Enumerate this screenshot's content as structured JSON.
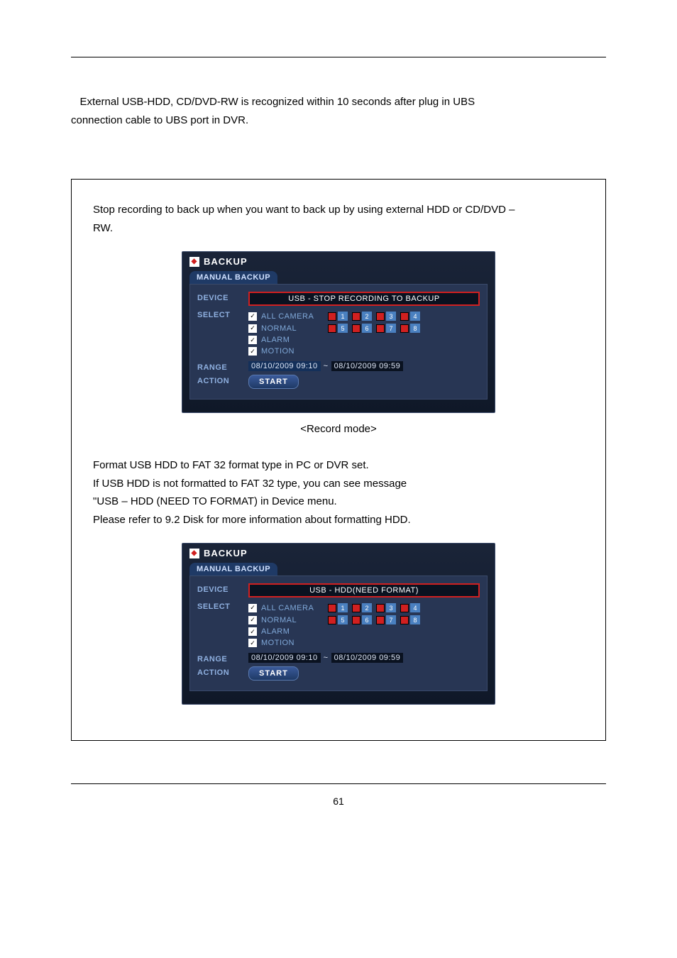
{
  "intro": {
    "line1": "External USB-HDD, CD/DVD-RW is recognized within 10 seconds after plug in UBS",
    "line2": "connection cable to UBS port in DVR."
  },
  "box": {
    "lead1": "Stop recording to back up when you want to back up by using external HDD or CD/DVD –",
    "lead2": "RW.",
    "caption1": "<Record mode>",
    "mid1": "Format USB HDD to FAT 32 format type in PC or DVR set.",
    "mid2": "If USB HDD is not formatted to FAT 32 type, you can see message",
    "mid3": "\"USB – HDD (NEED TO FORMAT) in Device menu.",
    "mid4": "Please refer to 9.2 Disk for more information about formatting HDD."
  },
  "dialog": {
    "title": "BACKUP",
    "tab": "MANUAL BACKUP",
    "labels": {
      "device": "DEVICE",
      "select": "SELECT",
      "range": "RANGE",
      "action": "ACTION"
    },
    "device1": "USB - STOP RECORDING TO BACKUP",
    "device2": "USB - HDD(NEED FORMAT)",
    "checks": {
      "allcam": "ALL CAMERA",
      "normal": "NORMAL",
      "alarm": "ALARM",
      "motion": "MOTION"
    },
    "cams_row1": [
      "1",
      "2",
      "3",
      "4"
    ],
    "cams_row2": [
      "5",
      "6",
      "7",
      "8"
    ],
    "cam_colors_row1": [
      "#4a80c0",
      "#4a80c0",
      "#4a80c0",
      "#4a80c0"
    ],
    "cam_colors_row2": [
      "#4a80c0",
      "#4a80c0",
      "#4a80c0",
      "#4a80c0"
    ],
    "range_from": "08/10/2009 09:10",
    "range_sep": "~",
    "range_to": "08/10/2009 09:59",
    "start": "START"
  },
  "colors": {
    "red": "#d02020",
    "dialog_bg_top": "#1a2438",
    "dialog_bg_bot": "#0f1828"
  },
  "page_number": "61"
}
